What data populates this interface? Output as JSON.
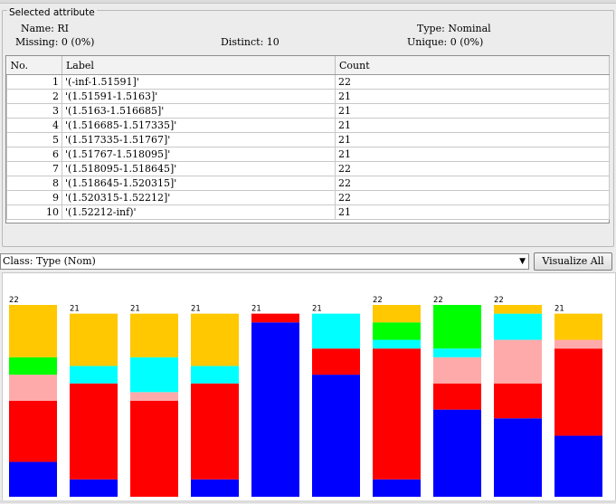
{
  "attribute": {
    "section_title": "Selected attribute",
    "name_label": "Name:",
    "name": "RI",
    "type_label": "Type:",
    "type": "Nominal",
    "missing_label": "Missing:",
    "missing": "0 (0%)",
    "distinct_label": "Distinct:",
    "distinct": "10",
    "unique_label": "Unique:",
    "unique": "0 (0%)"
  },
  "table": {
    "headers": [
      "No.",
      "Label",
      "Count"
    ],
    "rows": [
      {
        "no": "1",
        "label": "'(-inf-1.51591]'",
        "count": "22"
      },
      {
        "no": "2",
        "label": "'(1.51591-1.5163]'",
        "count": "21"
      },
      {
        "no": "3",
        "label": "'(1.5163-1.516685]'",
        "count": "21"
      },
      {
        "no": "4",
        "label": "'(1.516685-1.517335]'",
        "count": "21"
      },
      {
        "no": "5",
        "label": "'(1.517335-1.51767]'",
        "count": "21"
      },
      {
        "no": "6",
        "label": "'(1.51767-1.518095]'",
        "count": "21"
      },
      {
        "no": "7",
        "label": "'(1.518095-1.518645]'",
        "count": "22"
      },
      {
        "no": "8",
        "label": "'(1.518645-1.520315]'",
        "count": "22"
      },
      {
        "no": "9",
        "label": "'(1.520315-1.52212]'",
        "count": "22"
      },
      {
        "no": "10",
        "label": "'(1.52212-inf)'",
        "count": "21"
      }
    ]
  },
  "class_select": {
    "value": "Class: Type (Nom)"
  },
  "buttons": {
    "visualize_all": "Visualize All"
  },
  "colors": {
    "blue": "#0000ff",
    "red": "#ff0000",
    "pink": "#ffaaaa",
    "cyan": "#00ffff",
    "green": "#00ff00",
    "orange": "#ffc800"
  },
  "chart_data": {
    "type": "bar",
    "stacked": true,
    "categories": [
      "'(-inf-1.51591]'",
      "'(1.51591-1.5163]'",
      "'(1.5163-1.516685]'",
      "'(1.516685-1.517335]'",
      "'(1.517335-1.51767]'",
      "'(1.51767-1.518095]'",
      "'(1.518095-1.518645]'",
      "'(1.518645-1.520315]'",
      "'(1.520315-1.52212]'",
      "'(1.52212-inf)'"
    ],
    "totals": [
      22,
      21,
      21,
      21,
      21,
      21,
      22,
      22,
      22,
      21
    ],
    "ylim": [
      0,
      22
    ],
    "series": [
      {
        "color": "blue",
        "values": [
          4,
          2,
          0,
          2,
          20,
          14,
          2,
          10,
          9,
          7
        ]
      },
      {
        "color": "red",
        "values": [
          7,
          11,
          11,
          11,
          1,
          3,
          15,
          3,
          4,
          10
        ]
      },
      {
        "color": "pink",
        "values": [
          3,
          0,
          1,
          0,
          0,
          0,
          0,
          3,
          5,
          1
        ]
      },
      {
        "color": "cyan",
        "values": [
          0,
          2,
          4,
          2,
          0,
          4,
          1,
          1,
          3,
          0
        ]
      },
      {
        "color": "green",
        "values": [
          2,
          0,
          0,
          0,
          0,
          0,
          2,
          5,
          0,
          0
        ]
      },
      {
        "color": "orange",
        "values": [
          6,
          6,
          5,
          6,
          0,
          0,
          2,
          0,
          1,
          3
        ]
      }
    ]
  }
}
